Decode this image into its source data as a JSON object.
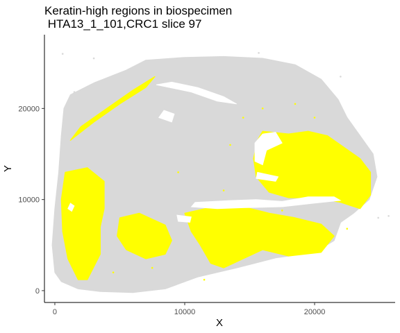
{
  "chart_data": {
    "type": "scatter",
    "title": "Keratin-high regions in biospecimen",
    "subtitle": " HTA13_1_101,CRC1 slice 97",
    "xlabel": "X",
    "ylabel": "Y",
    "xlim": [
      -800,
      26200
    ],
    "ylim": [
      -1300,
      28100
    ],
    "x_ticks": [
      0,
      10000,
      20000
    ],
    "x_tick_labels": [
      "0",
      "10000",
      "20000"
    ],
    "y_ticks": [
      0,
      10000,
      20000
    ],
    "y_tick_labels": [
      "0",
      "10000",
      "20000"
    ],
    "grid": false,
    "legend": "none",
    "series": [
      {
        "role": "all cells",
        "color": "#d9d9d9",
        "regions": [
          {
            "outline": [
              [
                1200,
                21500
              ],
              [
                3000,
                22800
              ],
              [
                5500,
                24200
              ],
              [
                7000,
                25300
              ],
              [
                10000,
                25600
              ],
              [
                13000,
                25700
              ],
              [
                16000,
                25500
              ],
              [
                18500,
                24800
              ],
              [
                20500,
                23200
              ],
              [
                21800,
                21000
              ],
              [
                22500,
                19000
              ],
              [
                23500,
                17000
              ],
              [
                24500,
                15000
              ],
              [
                24800,
                12500
              ],
              [
                24200,
                10000
              ],
              [
                23000,
                8500
              ],
              [
                22000,
                7500
              ],
              [
                21500,
                5500
              ],
              [
                20000,
                4200
              ],
              [
                17000,
                3600
              ],
              [
                14000,
                2500
              ],
              [
                11000,
                1500
              ],
              [
                8500,
                200
              ],
              [
                6000,
                -200
              ],
              [
                3500,
                -100
              ],
              [
                1800,
                200
              ],
              [
                500,
                1000
              ],
              [
                0,
                2000
              ],
              [
                -200,
                5000
              ],
              [
                0,
                9000
              ],
              [
                300,
                13000
              ],
              [
                500,
                17000
              ],
              [
                700,
                20000
              ]
            ]
          }
        ],
        "points": [
          [
            600,
            26000
          ],
          [
            3000,
            25500
          ],
          [
            22000,
            23500
          ],
          [
            25700,
            8200
          ],
          [
            24900,
            8000
          ],
          [
            15700,
            26100
          ],
          [
            1500,
            21800
          ],
          [
            18300,
            23200
          ],
          [
            9000,
            1000
          ],
          [
            4200,
            3000
          ]
        ]
      },
      {
        "role": "keratin-high cells",
        "color": "#ffff00",
        "regions": [
          {
            "outline": [
              [
                1200,
                16500
              ],
              [
                3000,
                18500
              ],
              [
                5000,
                20500
              ],
              [
                7000,
                22300
              ],
              [
                7700,
                23500
              ],
              [
                6000,
                22000
              ],
              [
                4000,
                20000
              ],
              [
                2000,
                18000
              ]
            ]
          },
          {
            "outline": [
              [
                16000,
                17500
              ],
              [
                18000,
                17200
              ],
              [
                19500,
                17500
              ],
              [
                21000,
                17000
              ],
              [
                22000,
                16000
              ],
              [
                23500,
                14500
              ],
              [
                24300,
                13000
              ],
              [
                24300,
                10500
              ],
              [
                23500,
                9000
              ],
              [
                22000,
                9700
              ],
              [
                20000,
                10200
              ],
              [
                18000,
                10200
              ],
              [
                16500,
                10800
              ],
              [
                15500,
                12500
              ],
              [
                15300,
                14500
              ],
              [
                15600,
                16500
              ]
            ]
          },
          {
            "outline": [
              [
                800,
                13000
              ],
              [
                2500,
                13500
              ],
              [
                3800,
                12000
              ],
              [
                3800,
                9000
              ],
              [
                3500,
                7000
              ],
              [
                3500,
                4000
              ],
              [
                2500,
                1200
              ],
              [
                1800,
                1200
              ],
              [
                1000,
                3500
              ],
              [
                600,
                6500
              ],
              [
                500,
                10000
              ]
            ]
          },
          {
            "outline": [
              [
                5000,
                8000
              ],
              [
                6500,
                8500
              ],
              [
                8500,
                7200
              ],
              [
                9000,
                5500
              ],
              [
                8500,
                4000
              ],
              [
                7000,
                3500
              ],
              [
                5500,
                4500
              ],
              [
                4800,
                6000
              ]
            ]
          },
          {
            "outline": [
              [
                10000,
                8500
              ],
              [
                12500,
                9300
              ],
              [
                14500,
                9200
              ],
              [
                16500,
                8500
              ],
              [
                18500,
                8000
              ],
              [
                20500,
                7300
              ],
              [
                21500,
                6000
              ],
              [
                20500,
                4200
              ],
              [
                18000,
                3800
              ],
              [
                16000,
                4500
              ],
              [
                14500,
                3500
              ],
              [
                13000,
                2500
              ],
              [
                12000,
                3000
              ],
              [
                11200,
                5000
              ],
              [
                10500,
                6500
              ]
            ]
          }
        ],
        "points": [
          [
            16000,
            20000
          ],
          [
            18500,
            20500
          ],
          [
            14500,
            19000
          ],
          [
            13500,
            16000
          ],
          [
            20000,
            19000
          ],
          [
            15000,
            7000
          ],
          [
            13000,
            11000
          ],
          [
            7500,
            2500
          ],
          [
            11500,
            1200
          ],
          [
            17500,
            8800
          ],
          [
            22500,
            6800
          ],
          [
            9500,
            13000
          ],
          [
            12500,
            6800
          ],
          [
            4500,
            2000
          ]
        ]
      }
    ],
    "holes": [
      {
        "outline": [
          [
            16000,
            17200
          ],
          [
            17000,
            17400
          ],
          [
            17500,
            16200
          ],
          [
            16300,
            15400
          ],
          [
            16000,
            13800
          ],
          [
            15400,
            14200
          ],
          [
            15400,
            16200
          ]
        ]
      },
      {
        "outline": [
          [
            10800,
            9700
          ],
          [
            13500,
            9900
          ],
          [
            15500,
            10000
          ],
          [
            17500,
            9800
          ],
          [
            19500,
            10300
          ],
          [
            21500,
            10300
          ],
          [
            22000,
            9900
          ],
          [
            20000,
            9600
          ],
          [
            17500,
            9200
          ],
          [
            14500,
            9100
          ],
          [
            12500,
            9000
          ],
          [
            10500,
            9200
          ]
        ]
      },
      {
        "outline": [
          [
            9400,
            8300
          ],
          [
            10500,
            8100
          ],
          [
            10400,
            7500
          ],
          [
            9500,
            7600
          ]
        ]
      },
      {
        "outline": [
          [
            7800,
            22600
          ],
          [
            10500,
            21800
          ],
          [
            12500,
            20800
          ],
          [
            14000,
            20500
          ],
          [
            13000,
            21300
          ],
          [
            11000,
            22300
          ],
          [
            9000,
            22900
          ]
        ]
      },
      {
        "outline": [
          [
            8000,
            19000
          ],
          [
            9000,
            18500
          ],
          [
            9200,
            19400
          ],
          [
            8400,
            19800
          ]
        ]
      },
      {
        "outline": [
          [
            15600,
            13000
          ],
          [
            17200,
            12500
          ],
          [
            17000,
            12000
          ],
          [
            15500,
            12300
          ]
        ]
      },
      {
        "outline": [
          [
            1000,
            9000
          ],
          [
            1300,
            8700
          ],
          [
            1500,
            9300
          ],
          [
            1200,
            9600
          ]
        ]
      }
    ]
  }
}
